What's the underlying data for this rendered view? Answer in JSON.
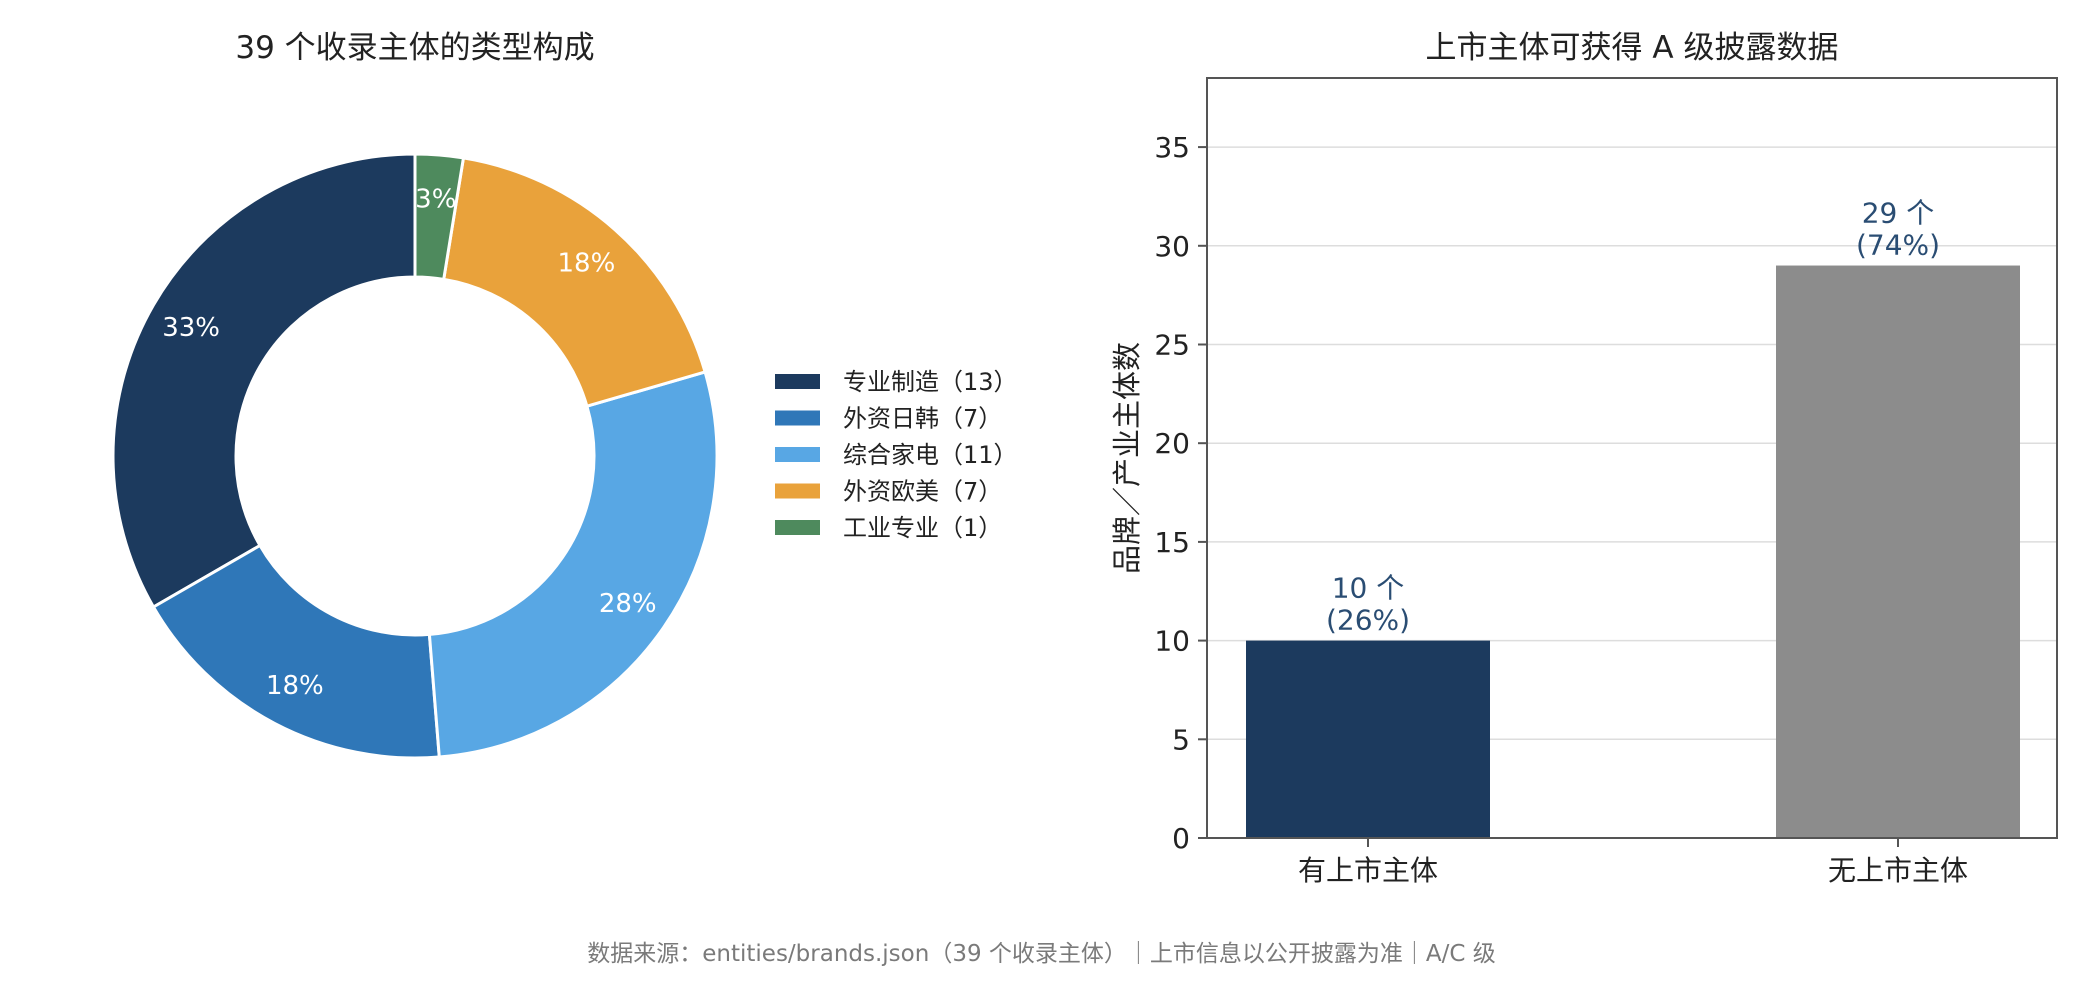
{
  "colors": {
    "navy": "#1c3a5e",
    "mid_blue": "#2f77b8",
    "light_blue": "#58a7e4",
    "orange": "#e9a23b",
    "green": "#4e8a5d",
    "gray": "#8c8c8c",
    "bar_label": "#2a4d73"
  },
  "chart_data": [
    {
      "type": "pie",
      "style": "donut",
      "title": "39 个收录主体的类型构成",
      "total": 39,
      "slices": [
        {
          "legend": "专业制造（13）",
          "value": 13,
          "label": "33%",
          "color": "#1c3a5e"
        },
        {
          "legend": "外资日韩（7）",
          "value": 7,
          "label": "18%",
          "color": "#2f77b8"
        },
        {
          "legend": "综合家电（11）",
          "value": 11,
          "label": "28%",
          "color": "#58a7e4"
        },
        {
          "legend": "外资欧美（7）",
          "value": 7,
          "label": "18%",
          "color": "#e9a23b"
        },
        {
          "legend": "工业专业（1）",
          "value": 1,
          "label": "3%",
          "color": "#4e8a5d"
        }
      ],
      "legend_position": "right"
    },
    {
      "type": "bar",
      "title": "上市主体可获得 A 级披露数据",
      "ylabel": "品牌／产业主体数",
      "categories": [
        "有上市主体",
        "无上市主体"
      ],
      "values": [
        10,
        29
      ],
      "bar_labels": [
        {
          "count": "10 个",
          "pct": "(26%)"
        },
        {
          "count": "29 个",
          "pct": "(74%)"
        }
      ],
      "bar_colors": [
        "#1c3a5e",
        "#8c8c8c"
      ],
      "ylim": [
        0,
        38.5
      ],
      "yticks": [
        "0",
        "5",
        "10",
        "15",
        "20",
        "25",
        "30",
        "35"
      ],
      "grid": "horizontal"
    }
  ],
  "footer": "数据来源：entities/brands.json（39 个收录主体）｜上市信息以公开披露为准｜A/C 级"
}
